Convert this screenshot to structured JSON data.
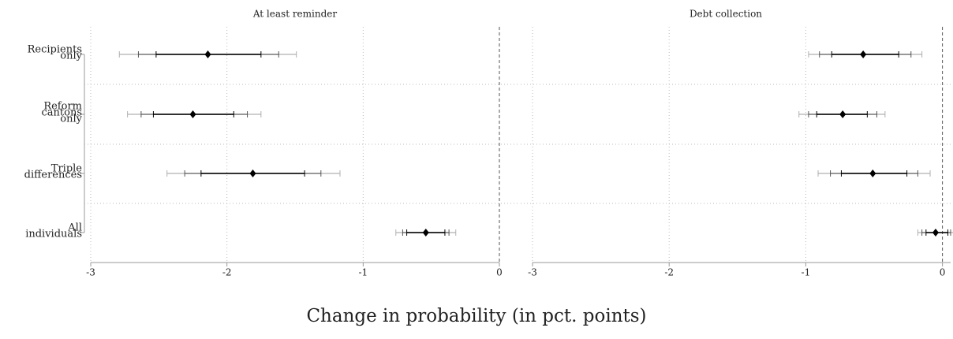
{
  "figure": {
    "xlabel": "Change in probability (in pct. points)"
  },
  "chart_data": [
    {
      "type": "coefplot",
      "title": "At least reminder",
      "categories": [
        [
          "Recipients",
          "only"
        ],
        [
          "Reform",
          "cantons",
          "only"
        ],
        [
          "Triple",
          "differences"
        ],
        [
          "All",
          "individuals"
        ]
      ],
      "estimates": [
        -2.14,
        -2.25,
        -1.81,
        -0.54
      ],
      "ci_inner": [
        [
          -2.52,
          -1.75
        ],
        [
          -2.54,
          -1.95
        ],
        [
          -2.19,
          -1.43
        ],
        [
          -0.68,
          -0.4
        ]
      ],
      "ci_mid": [
        [
          -2.65,
          -1.62
        ],
        [
          -2.63,
          -1.85
        ],
        [
          -2.31,
          -1.31
        ],
        [
          -0.71,
          -0.37
        ]
      ],
      "ci_outer": [
        [
          -2.79,
          -1.49
        ],
        [
          -2.73,
          -1.75
        ],
        [
          -2.44,
          -1.17
        ],
        [
          -0.76,
          -0.32
        ]
      ],
      "color": "#000000",
      "outer_color": "#b0b0b0",
      "xlim": [
        -3,
        0
      ],
      "xticks": [
        -3,
        -2,
        -1,
        0
      ],
      "grid": true
    },
    {
      "type": "coefplot",
      "title": "Debt collection",
      "estimates": [
        -0.58,
        -0.73,
        -0.51,
        -0.05
      ],
      "ci_inner": [
        [
          -0.81,
          -0.32
        ],
        [
          -0.92,
          -0.55
        ],
        [
          -0.74,
          -0.26
        ],
        [
          -0.12,
          0.04
        ]
      ],
      "ci_mid": [
        [
          -0.9,
          -0.23
        ],
        [
          -0.98,
          -0.48
        ],
        [
          -0.82,
          -0.18
        ],
        [
          -0.15,
          0.06
        ]
      ],
      "ci_outer": [
        [
          -0.98,
          -0.15
        ],
        [
          -1.05,
          -0.42
        ],
        [
          -0.91,
          -0.09
        ],
        [
          -0.18,
          0.08
        ]
      ],
      "color": "#000000",
      "outer_color": "#b0b0b0",
      "xlim": [
        -3,
        0.06
      ],
      "xticks": [
        -3,
        -2,
        -1,
        0
      ],
      "grid": true
    }
  ]
}
